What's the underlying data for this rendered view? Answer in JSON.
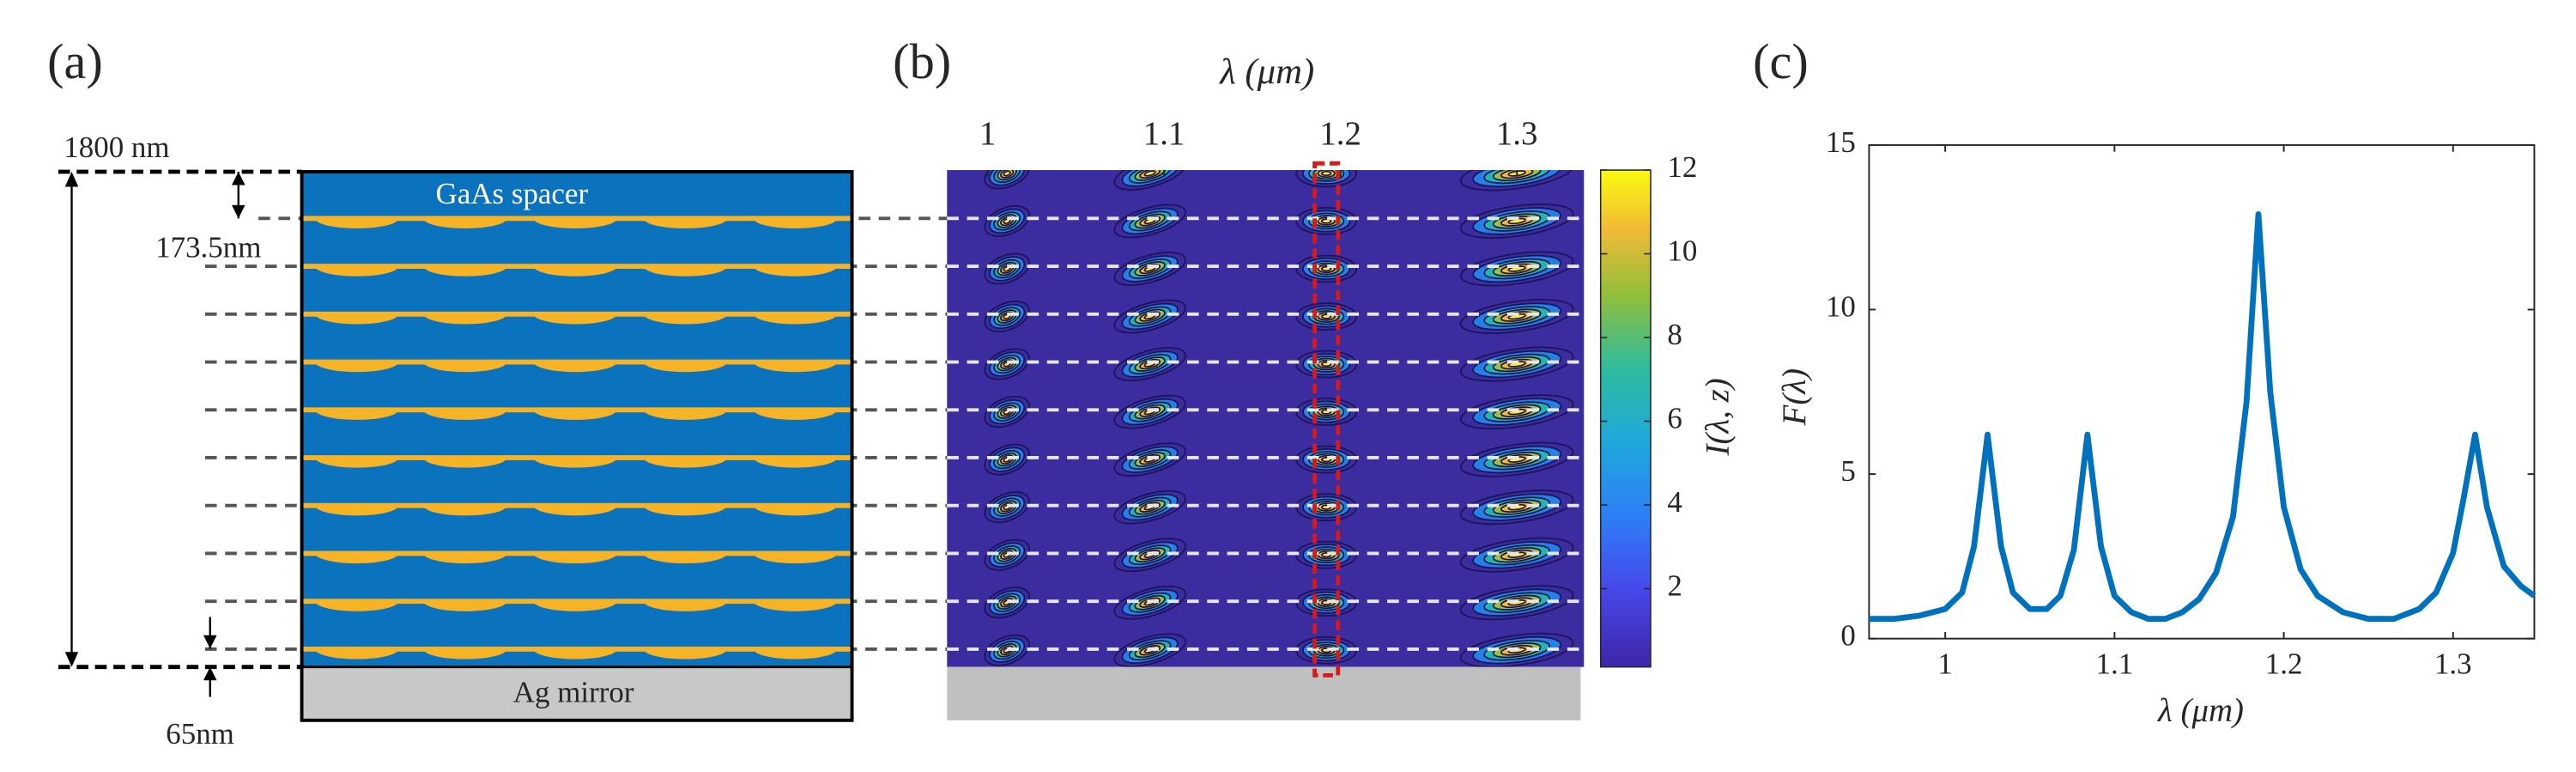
{
  "panel_a": {
    "label": "(a)",
    "total_label": "1800 nm",
    "spacer_label": "GaAs spacer",
    "period_label": "173.5nm",
    "mirror_label": "Ag mirror",
    "bottom_label": "65nm"
  },
  "chart_data": [
    {
      "type": "contour",
      "label": "(b)",
      "xlabel": "λ (μm)",
      "xlim": [
        0.977,
        1.338
      ],
      "xticks": [
        1,
        1.1,
        1.2,
        1.3
      ],
      "peaks_x": [
        1.011,
        1.092,
        1.192,
        1.3
      ],
      "highlight_x": 1.192,
      "colorbar_label": "I(λ, z)",
      "colorbar_lim": [
        0.13,
        12
      ],
      "colorbar_ticks": [
        2,
        4,
        6,
        8,
        10,
        12
      ]
    },
    {
      "type": "line",
      "label": "(c)",
      "xlabel": "λ (μm)",
      "ylabel": "F(λ)",
      "xlim": [
        0.955,
        1.348
      ],
      "ylim": [
        0,
        15
      ],
      "xticks": [
        1,
        1.1,
        1.2,
        1.3
      ],
      "yticks": [
        0,
        5,
        10,
        15
      ],
      "color": "#0072bd",
      "x": [
        0.955,
        0.97,
        0.985,
        1.0,
        1.01,
        1.017,
        1.025,
        1.033,
        1.04,
        1.05,
        1.06,
        1.068,
        1.076,
        1.084,
        1.092,
        1.1,
        1.11,
        1.12,
        1.13,
        1.14,
        1.15,
        1.16,
        1.17,
        1.178,
        1.185,
        1.192,
        1.2,
        1.21,
        1.22,
        1.235,
        1.25,
        1.265,
        1.28,
        1.29,
        1.3,
        1.306,
        1.313,
        1.32,
        1.33,
        1.34,
        1.348
      ],
      "values": [
        0.6,
        0.6,
        0.7,
        0.9,
        1.4,
        2.8,
        6.2,
        2.8,
        1.4,
        0.9,
        0.9,
        1.3,
        2.7,
        6.2,
        2.8,
        1.3,
        0.8,
        0.6,
        0.6,
        0.8,
        1.2,
        2.0,
        3.7,
        7.2,
        12.9,
        7.5,
        4.0,
        2.1,
        1.3,
        0.8,
        0.6,
        0.6,
        0.9,
        1.4,
        2.6,
        4.2,
        6.2,
        4.0,
        2.2,
        1.6,
        1.3
      ]
    }
  ]
}
